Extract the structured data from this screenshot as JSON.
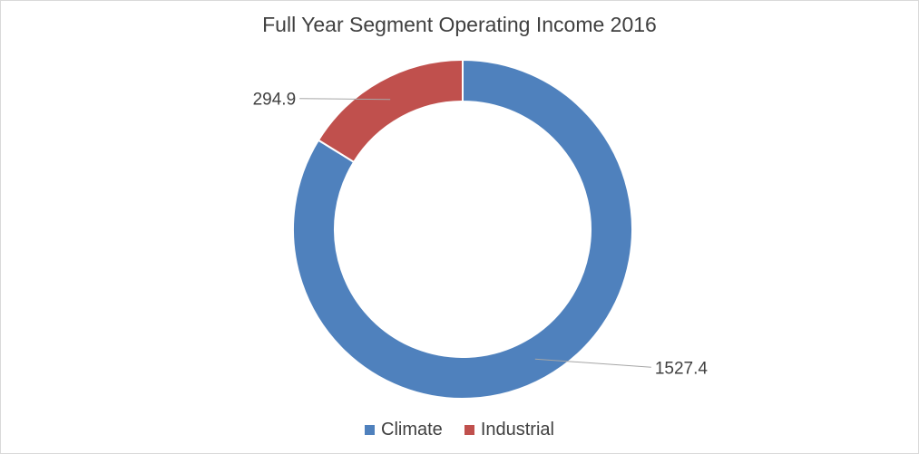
{
  "chart_data": {
    "type": "pie",
    "title": "Full Year Segment Operating Income 2016",
    "categories": [
      "Climate",
      "Industrial"
    ],
    "values": [
      1527.4,
      294.9
    ],
    "data_labels": [
      "1527.4",
      "294.9"
    ],
    "colors": [
      "#4f81bd",
      "#c0504d"
    ],
    "donut": true,
    "legend_position": "bottom"
  }
}
